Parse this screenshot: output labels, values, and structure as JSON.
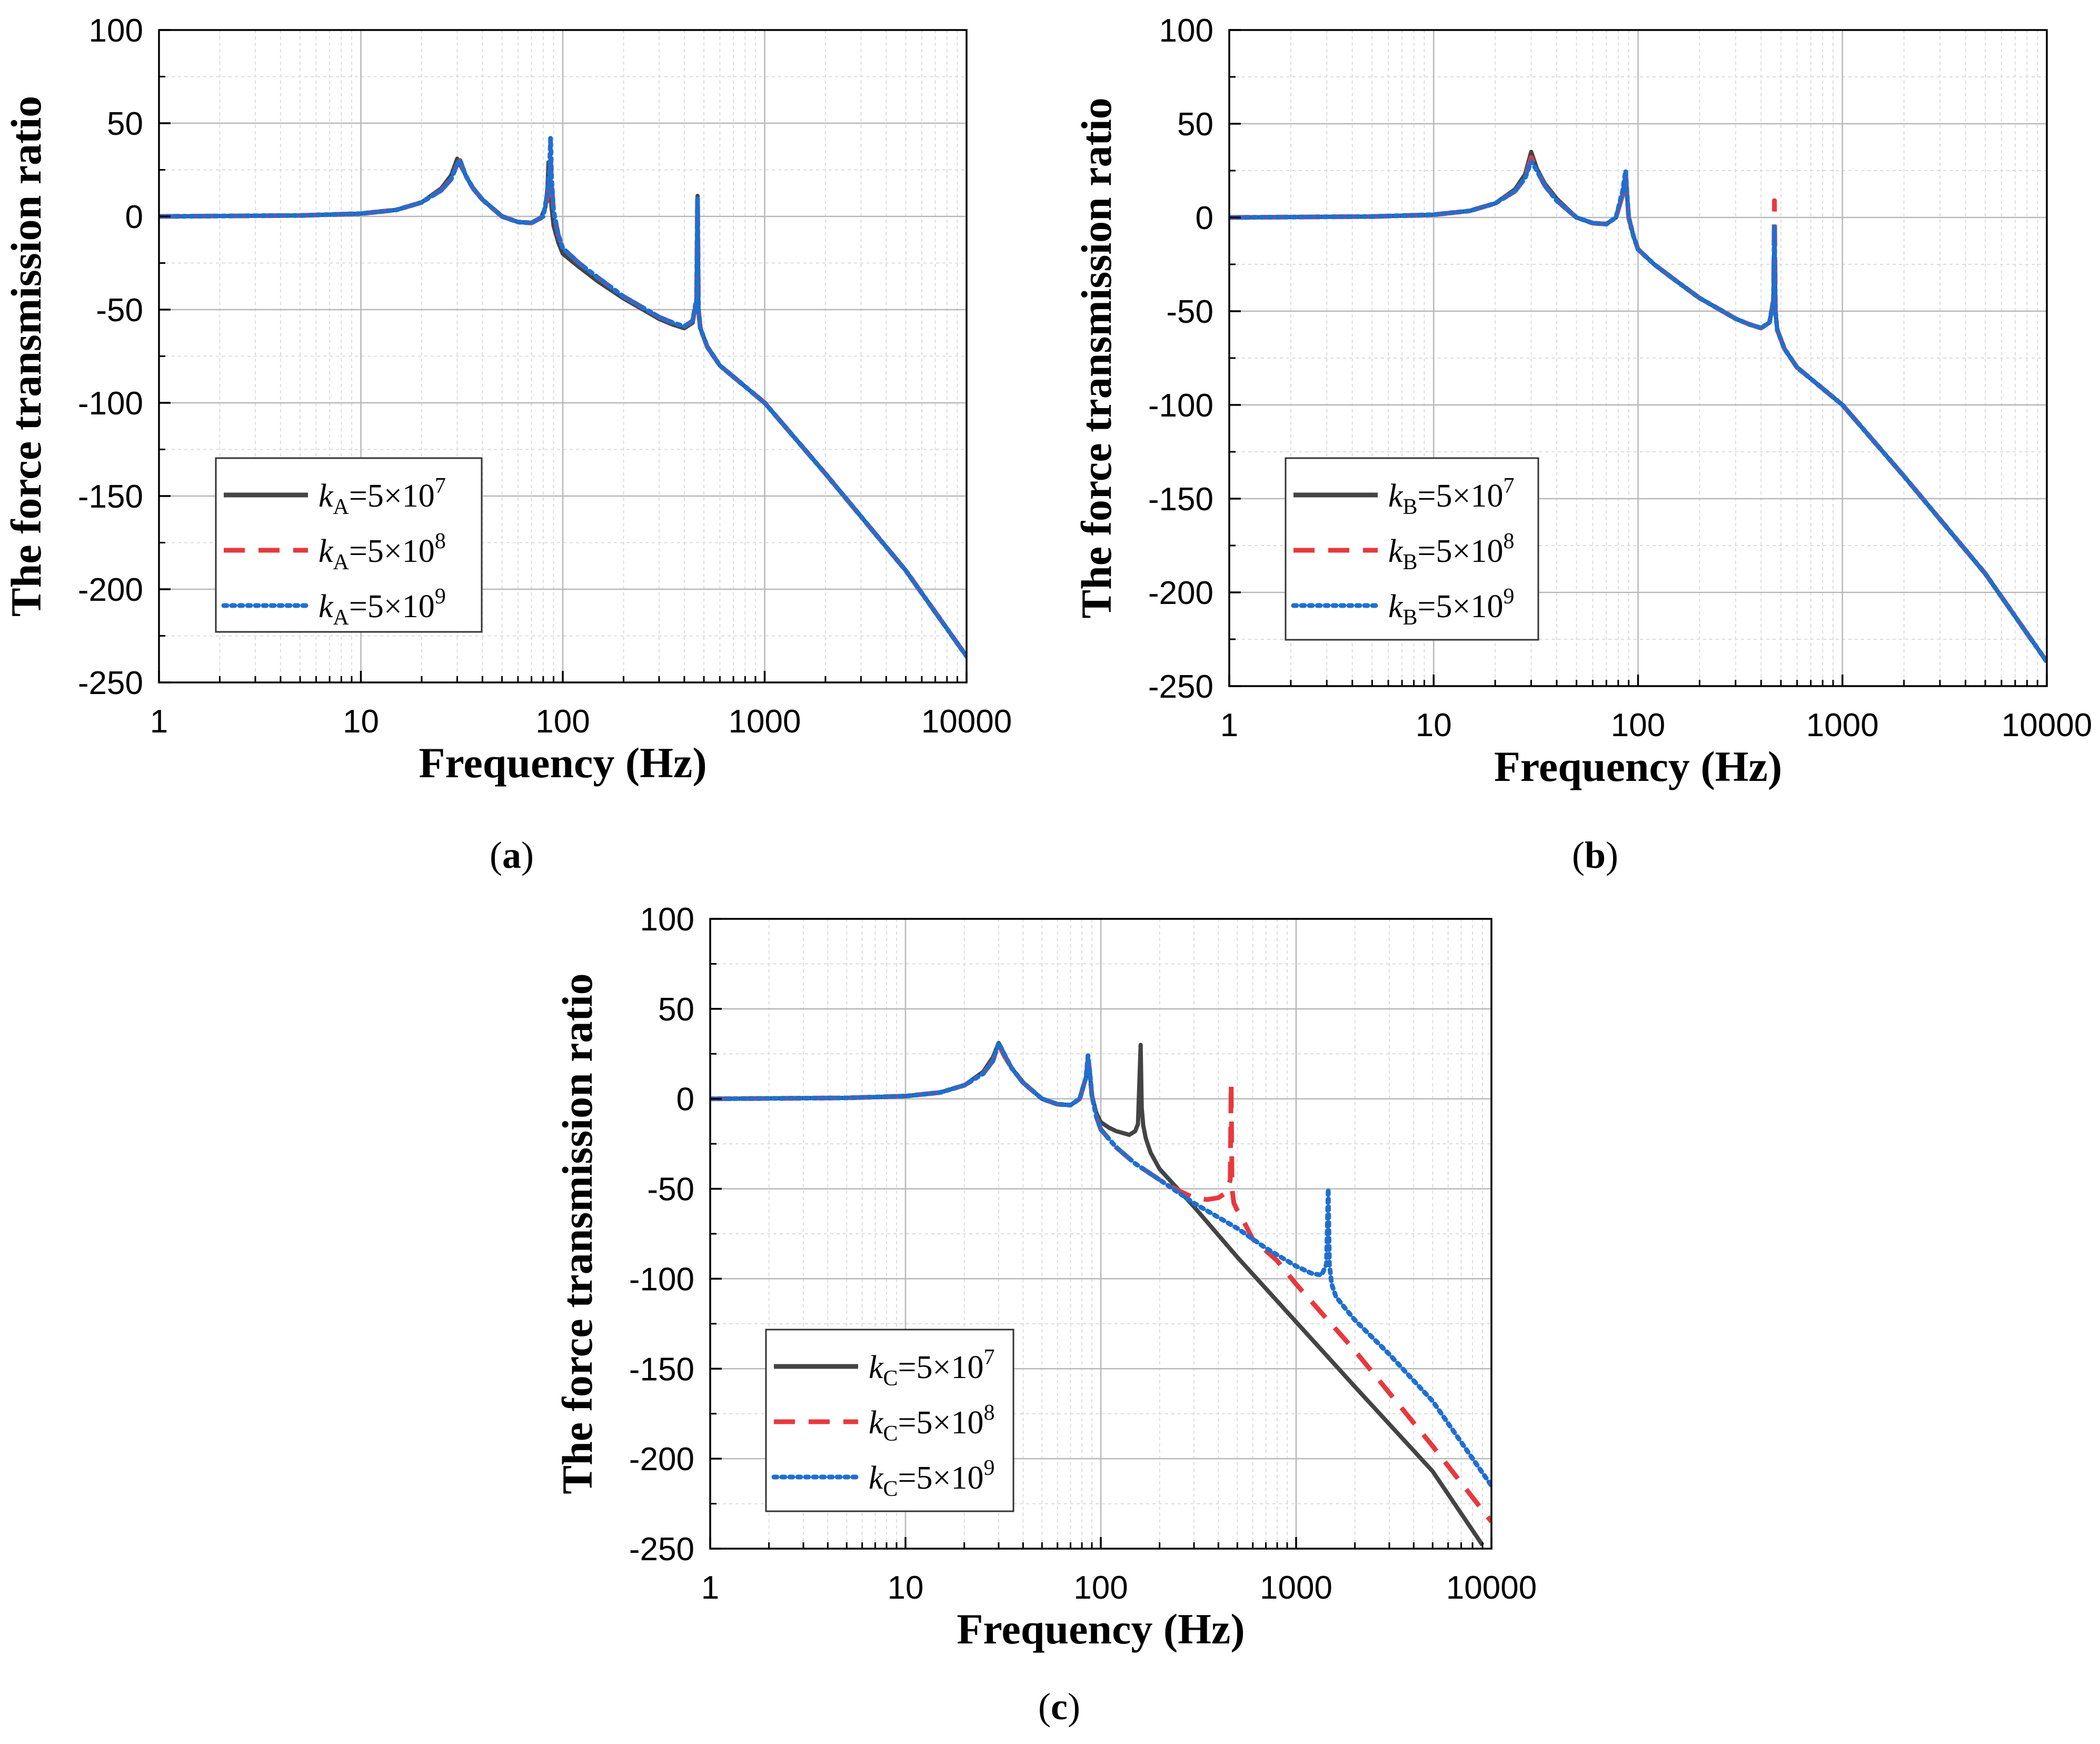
{
  "colors": {
    "k1": "#444444",
    "k2": "#e8383d",
    "k3": "#1f6fd1",
    "grid_major": "#b8b8b8",
    "grid_minor": "#dcdcdc"
  },
  "chart_data": [
    {
      "type": "line",
      "panel_label": "(a)",
      "label_open": "(",
      "label_letter": "a",
      "label_close": ")",
      "xlabel": "Frequency (Hz)",
      "ylabel": "The force transmission ratio",
      "xscale": "log",
      "xlim": [
        1,
        10000
      ],
      "ylim": [
        -250,
        100
      ],
      "xticks": [
        1,
        10,
        100,
        1000,
        10000
      ],
      "xtick_labels": [
        "1",
        "10",
        "100",
        "1000",
        "10000"
      ],
      "yticks": [
        100,
        50,
        0,
        -50,
        -100,
        -150,
        -200,
        -250
      ],
      "ytick_labels": [
        "100",
        "50",
        "0",
        "-50",
        "-100",
        "-150",
        "-200",
        "-250"
      ],
      "legend_position": "lower-left",
      "series": [
        {
          "name": "kA=5×10^7",
          "sym": "k",
          "sub": "A",
          "eq": "=5×10",
          "exp": "7",
          "style": "solid",
          "color_key": "k1",
          "x": [
            1,
            5,
            10,
            15,
            20,
            25,
            28,
            30,
            32,
            35,
            40,
            50,
            60,
            70,
            78,
            82,
            84,
            85,
            86,
            88,
            90,
            95,
            100,
            120,
            150,
            200,
            250,
            300,
            350,
            400,
            440,
            460,
            465,
            470,
            480,
            520,
            600,
            1000,
            2000,
            5000,
            10000
          ],
          "y": [
            0,
            0.5,
            1.5,
            3.5,
            7.5,
            15,
            22,
            31,
            25,
            17,
            9,
            0,
            -3,
            -3.5,
            -1,
            5,
            15,
            29,
            20,
            5,
            -5,
            -14,
            -20,
            -27,
            -35,
            -44,
            -50,
            -55,
            -58,
            -60,
            -57,
            -45,
            11,
            -50,
            -60,
            -70,
            -80,
            -100,
            -138,
            -190,
            -236
          ]
        },
        {
          "name": "kA=5×10^8",
          "sym": "k",
          "sub": "A",
          "eq": "=5×10",
          "exp": "8",
          "style": "dashed",
          "color_key": "k2",
          "x": [
            1,
            5,
            10,
            15,
            20,
            25,
            28,
            30,
            31,
            33,
            36,
            40,
            50,
            60,
            70,
            80,
            84,
            86,
            87,
            88,
            90,
            95,
            100,
            120,
            150,
            200,
            250,
            300,
            350,
            400,
            440,
            460,
            465,
            470,
            480,
            520,
            600,
            1000,
            2000,
            5000,
            10000
          ],
          "y": [
            0,
            0.5,
            1.5,
            3.5,
            7.5,
            14,
            20,
            28,
            30,
            22,
            15,
            9,
            0,
            -3,
            -3.5,
            0,
            10,
            20,
            30,
            18,
            3,
            -10,
            -17,
            -25,
            -33,
            -43,
            -49,
            -54,
            -57,
            -59,
            -56,
            -44,
            10,
            -50,
            -60,
            -70,
            -80,
            -100,
            -138,
            -190,
            -236
          ]
        },
        {
          "name": "kA=5×10^9",
          "sym": "k",
          "sub": "A",
          "eq": "=5×10",
          "exp": "9",
          "style": "dotted",
          "color_key": "k3",
          "x": [
            1,
            5,
            10,
            15,
            20,
            25,
            28,
            30,
            31,
            33,
            36,
            40,
            50,
            60,
            70,
            80,
            84,
            86,
            87,
            88,
            90,
            95,
            100,
            120,
            150,
            200,
            250,
            300,
            350,
            400,
            440,
            460,
            465,
            470,
            480,
            520,
            600,
            1000,
            2000,
            5000,
            10000
          ],
          "y": [
            0,
            0.5,
            1.5,
            3.5,
            7.5,
            14,
            20,
            28,
            30,
            22,
            15,
            9,
            0,
            -3,
            -3.5,
            0,
            12,
            25,
            42,
            20,
            3,
            -10,
            -17,
            -25,
            -33,
            -43,
            -49,
            -54,
            -57,
            -59,
            -56,
            -44,
            10,
            -50,
            -60,
            -70,
            -80,
            -100,
            -138,
            -190,
            -236
          ]
        }
      ]
    },
    {
      "type": "line",
      "panel_label": "(b)",
      "label_open": "(",
      "label_letter": "b",
      "label_close": ")",
      "xlabel": "Frequency (Hz)",
      "ylabel": "The force transmission ratio",
      "xscale": "log",
      "xlim": [
        1,
        10000
      ],
      "ylim": [
        -250,
        100
      ],
      "xticks": [
        1,
        10,
        100,
        1000,
        10000
      ],
      "xtick_labels": [
        "1",
        "10",
        "100",
        "1000",
        "10000"
      ],
      "yticks": [
        100,
        50,
        0,
        -50,
        -100,
        -150,
        -200,
        -250
      ],
      "ytick_labels": [
        "100",
        "50",
        "0",
        "-50",
        "-100",
        "-150",
        "-200",
        "-250"
      ],
      "legend_position": "lower-left",
      "series": [
        {
          "name": "kB=5×10^7",
          "sym": "k",
          "sub": "B",
          "eq": "=5×10",
          "exp": "7",
          "style": "solid",
          "color_key": "k1",
          "x": [
            1,
            5,
            10,
            15,
            20,
            25,
            28,
            30,
            32,
            35,
            40,
            50,
            60,
            70,
            78,
            84,
            87,
            88,
            90,
            95,
            100,
            120,
            150,
            200,
            250,
            300,
            350,
            400,
            440,
            460,
            465,
            470,
            480,
            520,
            600,
            1000,
            2000,
            5000,
            10000
          ],
          "y": [
            0,
            0.5,
            1.5,
            3.5,
            7.5,
            15,
            23,
            35,
            26,
            18,
            10,
            0,
            -3,
            -3.5,
            0,
            12,
            23,
            15,
            0,
            -10,
            -17,
            -25,
            -33,
            -43,
            -49,
            -54,
            -57,
            -59,
            -56,
            -44,
            -8,
            -50,
            -60,
            -70,
            -80,
            -100,
            -138,
            -190,
            -237
          ]
        },
        {
          "name": "kB=5×10^8",
          "sym": "k",
          "sub": "B",
          "eq": "=5×10",
          "exp": "8",
          "style": "dashed",
          "color_key": "k2",
          "x": [
            1,
            5,
            10,
            15,
            20,
            25,
            28,
            30,
            32,
            35,
            40,
            50,
            60,
            70,
            78,
            84,
            87,
            88,
            90,
            95,
            100,
            120,
            150,
            200,
            250,
            300,
            350,
            400,
            440,
            460,
            465,
            470,
            480,
            520,
            600,
            1000,
            2000,
            5000,
            10000
          ],
          "y": [
            0,
            0.5,
            1.5,
            3.5,
            7.5,
            14,
            21,
            32,
            25,
            17,
            9,
            0,
            -3,
            -3.5,
            0,
            12,
            22,
            15,
            0,
            -10,
            -17,
            -25,
            -33,
            -43,
            -49,
            -54,
            -57,
            -59,
            -56,
            -44,
            9,
            -50,
            -60,
            -70,
            -80,
            -100,
            -138,
            -190,
            -237
          ]
        },
        {
          "name": "kB=5×10^9",
          "sym": "k",
          "sub": "B",
          "eq": "=5×10",
          "exp": "9",
          "style": "dotted",
          "color_key": "k3",
          "x": [
            1,
            5,
            10,
            15,
            20,
            25,
            28,
            30,
            32,
            35,
            40,
            50,
            60,
            70,
            78,
            84,
            87,
            88,
            90,
            95,
            100,
            120,
            150,
            200,
            250,
            300,
            350,
            400,
            440,
            460,
            465,
            470,
            480,
            520,
            600,
            1000,
            2000,
            5000,
            10000
          ],
          "y": [
            0,
            0.5,
            1.5,
            3.5,
            7.5,
            14,
            21,
            30,
            25,
            17,
            9,
            0,
            -3,
            -3.5,
            0,
            14,
            25,
            15,
            0,
            -10,
            -17,
            -25,
            -33,
            -43,
            -49,
            -54,
            -57,
            -59,
            -56,
            -44,
            -5,
            -50,
            -60,
            -70,
            -80,
            -100,
            -138,
            -190,
            -237
          ]
        }
      ]
    },
    {
      "type": "line",
      "panel_label": "(c)",
      "label_open": "(",
      "label_letter": "c",
      "label_close": ")",
      "xlabel": "Frequency (Hz)",
      "ylabel": "The force transmission ratio",
      "xscale": "log",
      "xlim": [
        1,
        10000
      ],
      "ylim": [
        -250,
        100
      ],
      "xticks": [
        1,
        10,
        100,
        1000,
        10000
      ],
      "xtick_labels": [
        "1",
        "10",
        "100",
        "1000",
        "10000"
      ],
      "yticks": [
        100,
        50,
        0,
        -50,
        -100,
        -150,
        -200,
        -250
      ],
      "ytick_labels": [
        "100",
        "50",
        "0",
        "-50",
        "-100",
        "-150",
        "-200",
        "-250"
      ],
      "legend_position": "lower-left",
      "series": [
        {
          "name": "kC=5×10^7",
          "sym": "k",
          "sub": "C",
          "eq": "=5×10",
          "exp": "7",
          "style": "solid",
          "color_key": "k1",
          "x": [
            1,
            5,
            10,
            15,
            20,
            25,
            28,
            30,
            32,
            35,
            40,
            50,
            60,
            70,
            78,
            84,
            86,
            88,
            90,
            95,
            100,
            110,
            120,
            140,
            150,
            155,
            160,
            162,
            165,
            170,
            180,
            200,
            300,
            500,
            1000,
            2000,
            5000,
            9000
          ],
          "y": [
            0,
            0.5,
            1.5,
            3.5,
            7.5,
            15,
            23,
            31,
            25,
            17,
            9,
            0,
            -3,
            -3.5,
            0,
            12,
            22,
            14,
            2,
            -8,
            -13,
            -16,
            -18,
            -20,
            -18,
            -14,
            30,
            -5,
            -15,
            -22,
            -30,
            -39,
            -60,
            -88,
            -124,
            -160,
            -207,
            -248
          ]
        },
        {
          "name": "kC=5×10^8",
          "sym": "k",
          "sub": "C",
          "eq": "=5×10",
          "exp": "8",
          "style": "dashed",
          "color_key": "k2",
          "x": [
            1,
            5,
            10,
            15,
            20,
            25,
            28,
            30,
            32,
            35,
            40,
            50,
            60,
            70,
            78,
            84,
            86,
            88,
            90,
            95,
            100,
            120,
            150,
            200,
            250,
            300,
            350,
            400,
            440,
            460,
            465,
            470,
            480,
            500,
            550,
            600,
            800,
            1000,
            2000,
            5000,
            10000
          ],
          "y": [
            0,
            0.5,
            1.5,
            3.5,
            7.5,
            14,
            21,
            30,
            24,
            17,
            9,
            0,
            -3,
            -3.5,
            0,
            12,
            22,
            14,
            2,
            -10,
            -17,
            -27,
            -36,
            -45,
            -51,
            -55,
            -56,
            -55,
            -52,
            -45,
            9,
            -50,
            -58,
            -62,
            -70,
            -78,
            -90,
            -103,
            -140,
            -193,
            -235
          ]
        },
        {
          "name": "kC=5×10^9",
          "sym": "k",
          "sub": "C",
          "eq": "=5×10",
          "exp": "9",
          "style": "dotted",
          "color_key": "k3",
          "x": [
            1,
            5,
            10,
            15,
            20,
            25,
            28,
            30,
            32,
            35,
            40,
            50,
            60,
            70,
            78,
            84,
            86,
            88,
            90,
            95,
            100,
            120,
            150,
            200,
            300,
            500,
            700,
            1000,
            1200,
            1350,
            1430,
            1460,
            1480,
            1520,
            1600,
            1800,
            2000,
            3000,
            5000,
            10000
          ],
          "y": [
            0,
            0.5,
            1.5,
            3.5,
            7.5,
            14,
            21,
            31,
            25,
            17,
            9,
            0,
            -3,
            -3.5,
            0,
            12,
            24,
            14,
            2,
            -10,
            -17,
            -27,
            -36,
            -45,
            -58,
            -72,
            -83,
            -93,
            -97,
            -98,
            -92,
            -50,
            -92,
            -103,
            -110,
            -117,
            -123,
            -142,
            -168,
            -215
          ]
        }
      ]
    }
  ]
}
